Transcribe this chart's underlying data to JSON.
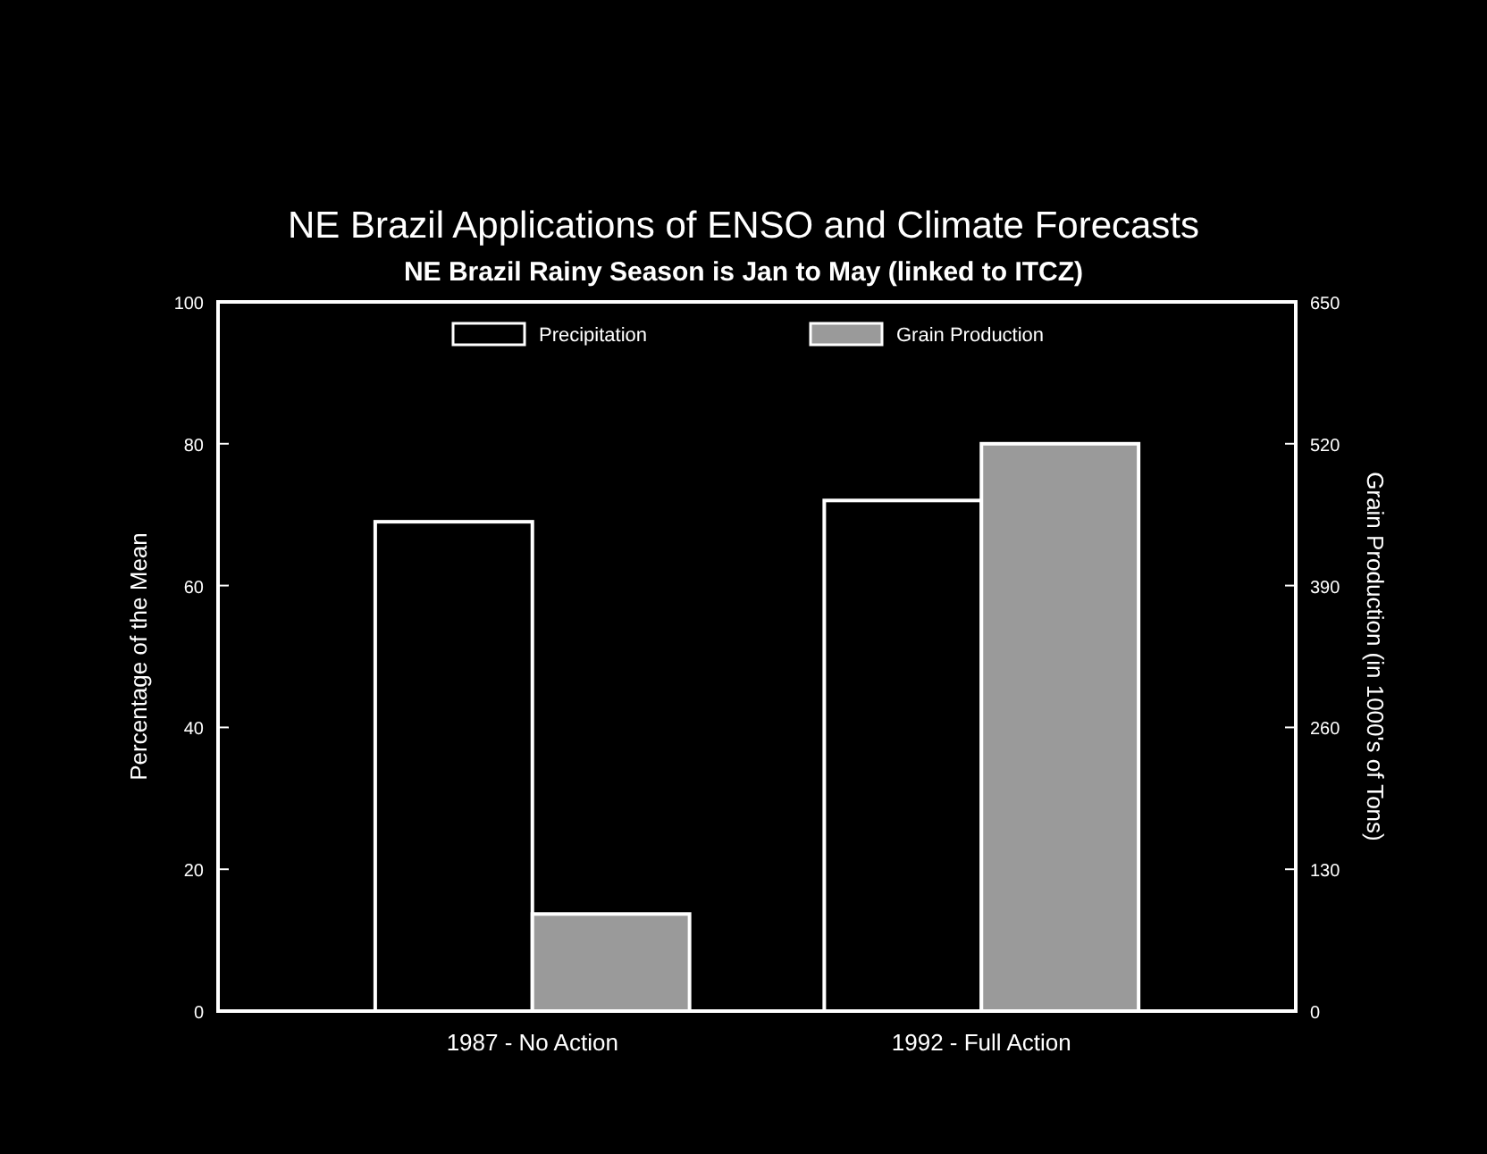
{
  "chart_data": {
    "type": "bar",
    "title": "NE Brazil Applications of ENSO and Climate Forecasts",
    "subtitle": "NE Brazil Rainy Season is Jan to May (linked to ITCZ)",
    "categories": [
      "1987 - No Action",
      "1992 - Full Action"
    ],
    "series": [
      {
        "name": "Precipitation",
        "color": "#000000",
        "values": [
          69,
          72
        ]
      },
      {
        "name": "Grain Production",
        "color": "#9a9a9a",
        "values": [
          89,
          520
        ],
        "axis": "y2"
      }
    ],
    "ylabel": "Percentage of the Mean",
    "y2label": "Grain Production (in 1000's of Tons)",
    "ylim": [
      0,
      100
    ],
    "yticks": [
      0,
      20,
      40,
      60,
      80,
      100
    ],
    "y2lim": [
      0,
      650
    ],
    "y2ticks": [
      0,
      130,
      260,
      390,
      520,
      650
    ],
    "legend": "top",
    "grid": false
  }
}
